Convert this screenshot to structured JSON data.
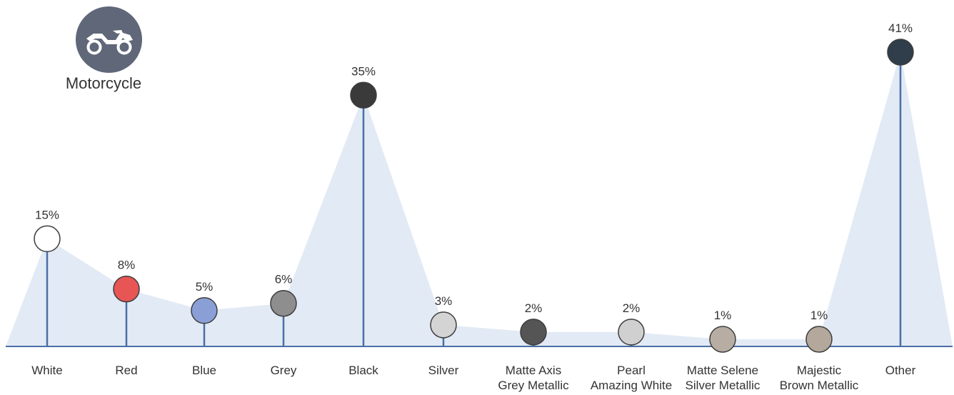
{
  "legend_badge": {
    "label": "Motorcycle",
    "icon": "motorcycle-icon",
    "color": "#5f6779"
  },
  "chart_data": {
    "type": "lollipop",
    "title": "",
    "xlabel": "",
    "ylabel": "",
    "ylim": [
      0,
      45
    ],
    "grid": false,
    "area_color": "#e2eaf5",
    "stem_color": "#4a6fa5",
    "categories": [
      "White",
      "Red",
      "Blue",
      "Grey",
      "Black",
      "Silver",
      "Matte Axis Grey Metallic",
      "Pearl Amazing White",
      "Matte Selene Silver Metallic",
      "Majestic Brown Metallic",
      "Other"
    ],
    "category_lines": [
      [
        "White"
      ],
      [
        "Red"
      ],
      [
        "Blue"
      ],
      [
        "Grey"
      ],
      [
        "Black"
      ],
      [
        "Silver"
      ],
      [
        "Matte Axis",
        "Grey Metallic"
      ],
      [
        "Pearl",
        "Amazing White"
      ],
      [
        "Matte Selene",
        "Silver Metallic"
      ],
      [
        "Majestic",
        "Brown Metallic"
      ],
      [
        "Other"
      ]
    ],
    "values": [
      15,
      8,
      5,
      6,
      35,
      3,
      2,
      2,
      1,
      1,
      41
    ],
    "labels": [
      "15%",
      "8%",
      "5%",
      "6%",
      "35%",
      "3%",
      "2%",
      "2%",
      "1%",
      "1%",
      "41%"
    ],
    "dot_colors": [
      "#ffffff",
      "#e85555",
      "#8a9fd6",
      "#8e8e8e",
      "#3a3a3a",
      "#d4d4d4",
      "#555555",
      "#d0d0d0",
      "#b8ada3",
      "#b3a89b",
      "#2f3e4a"
    ]
  }
}
